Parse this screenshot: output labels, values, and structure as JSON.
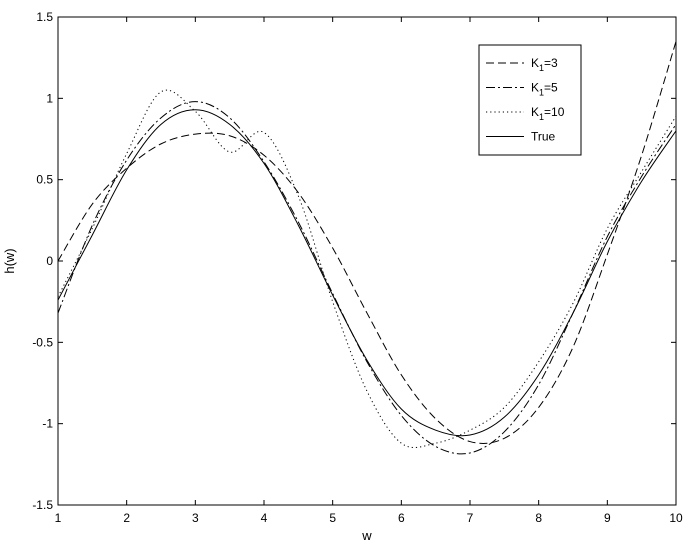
{
  "chart_data": {
    "type": "line",
    "title": "",
    "xlabel": "w",
    "ylabel": "h(w)",
    "xlim": [
      1,
      10
    ],
    "ylim": [
      -1.5,
      1.5
    ],
    "grid": false,
    "legend_position": "top-right",
    "x_ticks": [
      "1",
      "2",
      "3",
      "4",
      "5",
      "6",
      "7",
      "8",
      "9",
      "10"
    ],
    "y_ticks": [
      "-1.5",
      "-1",
      "-0.5",
      "0",
      "0.5",
      "1",
      "1.5"
    ],
    "x": [
      1,
      1.5,
      2,
      2.5,
      3,
      3.5,
      4,
      4.5,
      5,
      5.5,
      6,
      6.5,
      7,
      7.5,
      8,
      8.5,
      9,
      9.5,
      10
    ],
    "series": [
      {
        "name": "K1=3",
        "legend_main": "K",
        "legend_sub": "1",
        "legend_rest": "=3",
        "style": "dashed",
        "values": [
          0.0,
          0.35,
          0.57,
          0.72,
          0.78,
          0.77,
          0.65,
          0.42,
          0.08,
          -0.32,
          -0.7,
          -0.97,
          -1.11,
          -1.09,
          -0.9,
          -0.53,
          0.04,
          0.65,
          1.35
        ]
      },
      {
        "name": "K1=5",
        "legend_main": "K",
        "legend_sub": "1",
        "legend_rest": "=5",
        "style": "dashdot",
        "values": [
          -0.32,
          0.22,
          0.62,
          0.88,
          0.98,
          0.88,
          0.61,
          0.24,
          -0.2,
          -0.62,
          -0.95,
          -1.14,
          -1.18,
          -1.05,
          -0.76,
          -0.32,
          0.15,
          0.52,
          0.84
        ]
      },
      {
        "name": "K1=10",
        "legend_main": "K",
        "legend_sub": "1",
        "legend_rest": "=10",
        "style": "dotted",
        "values": [
          -0.22,
          0.2,
          0.66,
          1.04,
          0.92,
          0.67,
          0.79,
          0.4,
          -0.25,
          -0.8,
          -1.12,
          -1.12,
          -1.04,
          -0.9,
          -0.62,
          -0.26,
          0.2,
          0.55,
          0.89
        ]
      },
      {
        "name": "True",
        "legend_main": "True",
        "legend_sub": "",
        "legend_rest": "",
        "style": "solid",
        "values": [
          -0.24,
          0.16,
          0.56,
          0.84,
          0.93,
          0.84,
          0.6,
          0.22,
          -0.21,
          -0.61,
          -0.91,
          -1.04,
          -1.07,
          -0.96,
          -0.7,
          -0.32,
          0.12,
          0.49,
          0.8
        ]
      }
    ]
  }
}
